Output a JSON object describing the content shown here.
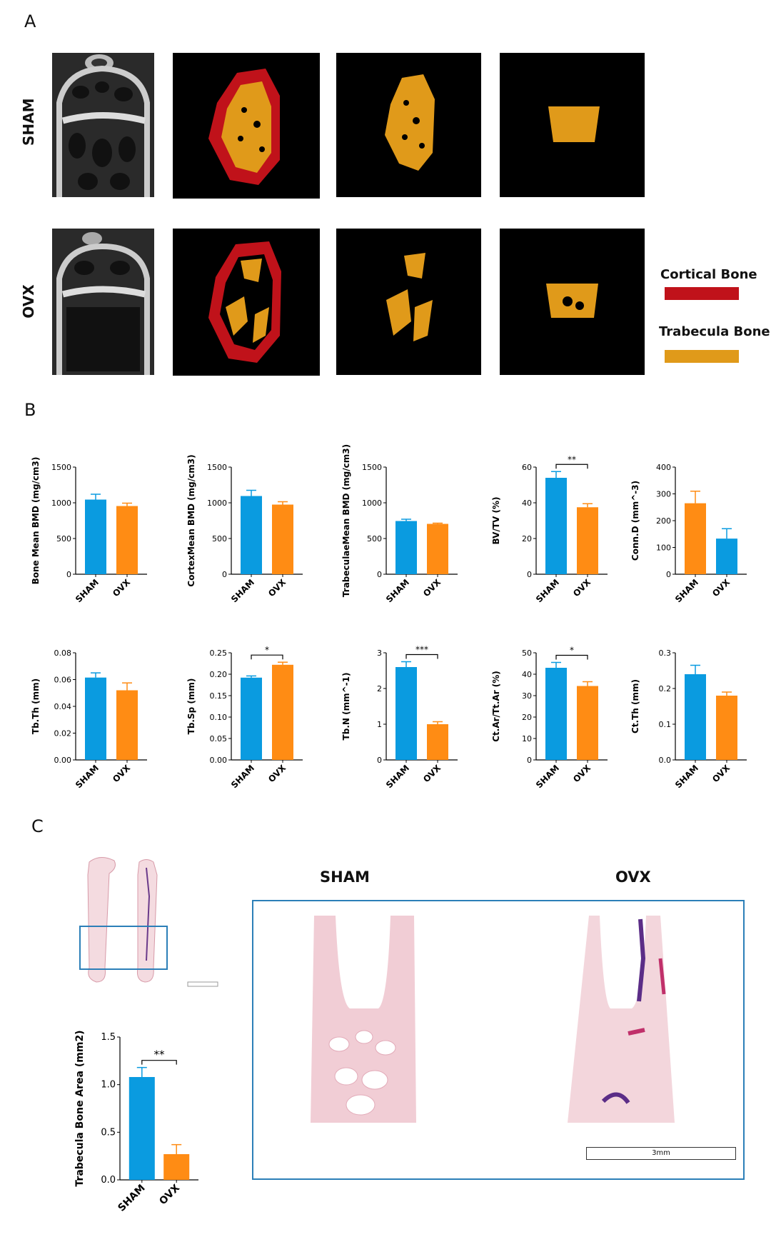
{
  "panels": {
    "a": "A",
    "b": "B",
    "c": "C"
  },
  "panel_a": {
    "rows": [
      "SHAM",
      "OVX"
    ],
    "legend": [
      {
        "label": "Cortical Bone",
        "color": "#c0121a"
      },
      {
        "label": "Trabecula Bone",
        "color": "#e09a1a"
      }
    ]
  },
  "colors": {
    "blue": "#0a9be0",
    "orange": "#ff8c14"
  },
  "chart_data": [
    {
      "type": "bar",
      "categories": [
        "SHAM",
        "OVX"
      ],
      "values": [
        1045,
        955
      ],
      "errors": [
        75,
        40
      ],
      "ylabel": "Bone Mean BMD (mg/cm3)",
      "ylim": [
        0,
        1500
      ],
      "ticks": [
        "0",
        "500",
        "1000",
        "1500"
      ],
      "colors": [
        "blue",
        "orange"
      ],
      "sig": ""
    },
    {
      "type": "bar",
      "categories": [
        "SHAM",
        "OVX"
      ],
      "values": [
        1095,
        975
      ],
      "errors": [
        80,
        40
      ],
      "ylabel": "CortexMean BMD (mg/cm3)",
      "ylim": [
        0,
        1500
      ],
      "ticks": [
        "0",
        "500",
        "1000",
        "1500"
      ],
      "colors": [
        "blue",
        "orange"
      ],
      "sig": ""
    },
    {
      "type": "bar",
      "categories": [
        "SHAM",
        "OVX"
      ],
      "values": [
        745,
        705
      ],
      "errors": [
        25,
        10
      ],
      "ylabel": "TrabeculaeMean BMD (mg/cm3)",
      "ylim": [
        0,
        1500
      ],
      "ticks": [
        "0",
        "500",
        "1000",
        "1500"
      ],
      "colors": [
        "blue",
        "orange"
      ],
      "sig": ""
    },
    {
      "type": "bar",
      "categories": [
        "SHAM",
        "OVX"
      ],
      "values": [
        54,
        37.5
      ],
      "errors": [
        3.5,
        2
      ],
      "ylabel": "BV/TV (%)",
      "ylim": [
        0,
        60
      ],
      "ticks": [
        "0",
        "20",
        "40",
        "60"
      ],
      "colors": [
        "blue",
        "orange"
      ],
      "sig": "**"
    },
    {
      "type": "bar",
      "categories": [
        "SHAM",
        "OVX"
      ],
      "values": [
        265,
        133
      ],
      "errors": [
        45,
        37
      ],
      "ylabel": "Conn.D (mm^-3)",
      "ylim": [
        0,
        400
      ],
      "ticks": [
        "0",
        "100",
        "200",
        "300",
        "400"
      ],
      "colors": [
        "orange",
        "blue"
      ],
      "sig": ""
    },
    {
      "type": "bar",
      "categories": [
        "SHAM",
        "OVX"
      ],
      "values": [
        0.0615,
        0.052
      ],
      "errors": [
        0.0035,
        0.0055
      ],
      "ylabel": "Tb.Th (mm)",
      "ylim": [
        0,
        0.08
      ],
      "ticks": [
        "0.00",
        "0.02",
        "0.04",
        "0.06",
        "0.08"
      ],
      "colors": [
        "blue",
        "orange"
      ],
      "sig": ""
    },
    {
      "type": "bar",
      "categories": [
        "SHAM",
        "OVX"
      ],
      "values": [
        0.192,
        0.222
      ],
      "errors": [
        0.004,
        0.006
      ],
      "ylabel": "Tb.Sp (mm)",
      "ylim": [
        0,
        0.25
      ],
      "ticks": [
        "0.00",
        "0.05",
        "0.10",
        "0.15",
        "0.20",
        "0.25"
      ],
      "colors": [
        "blue",
        "orange"
      ],
      "sig": "*"
    },
    {
      "type": "bar",
      "categories": [
        "SHAM",
        "OVX"
      ],
      "values": [
        2.6,
        1.0
      ],
      "errors": [
        0.15,
        0.07
      ],
      "ylabel": "Tb.N (mm^-1)",
      "ylim": [
        0,
        3
      ],
      "ticks": [
        "0",
        "1",
        "2",
        "3"
      ],
      "colors": [
        "blue",
        "orange"
      ],
      "sig": "***"
    },
    {
      "type": "bar",
      "categories": [
        "SHAM",
        "OVX"
      ],
      "values": [
        43,
        34.5
      ],
      "errors": [
        2.5,
        2
      ],
      "ylabel": "Ct.Ar/Tt.Ar (%)",
      "ylim": [
        0,
        50
      ],
      "ticks": [
        "0",
        "10",
        "20",
        "30",
        "40",
        "50"
      ],
      "colors": [
        "blue",
        "orange"
      ],
      "sig": "*"
    },
    {
      "type": "bar",
      "categories": [
        "SHAM",
        "OVX"
      ],
      "values": [
        0.24,
        0.18
      ],
      "errors": [
        0.025,
        0.01
      ],
      "ylabel": "Ct.Th (mm)",
      "ylim": [
        0,
        0.3
      ],
      "ticks": [
        "0.0",
        "0.1",
        "0.2",
        "0.3"
      ],
      "colors": [
        "blue",
        "orange"
      ],
      "sig": ""
    },
    {
      "type": "bar",
      "categories": [
        "SHAM",
        "OVX"
      ],
      "values": [
        1.08,
        0.27
      ],
      "errors": [
        0.1,
        0.1
      ],
      "ylabel": "Trabecula Bone Area (mm2)",
      "ylim": [
        0,
        1.5
      ],
      "ticks": [
        "0.0",
        "0.5",
        "1.0",
        "1.5"
      ],
      "colors": [
        "blue",
        "orange"
      ],
      "sig": "**"
    }
  ],
  "panel_c": {
    "titles": [
      "SHAM",
      "OVX"
    ],
    "scalebar": "3mm"
  }
}
